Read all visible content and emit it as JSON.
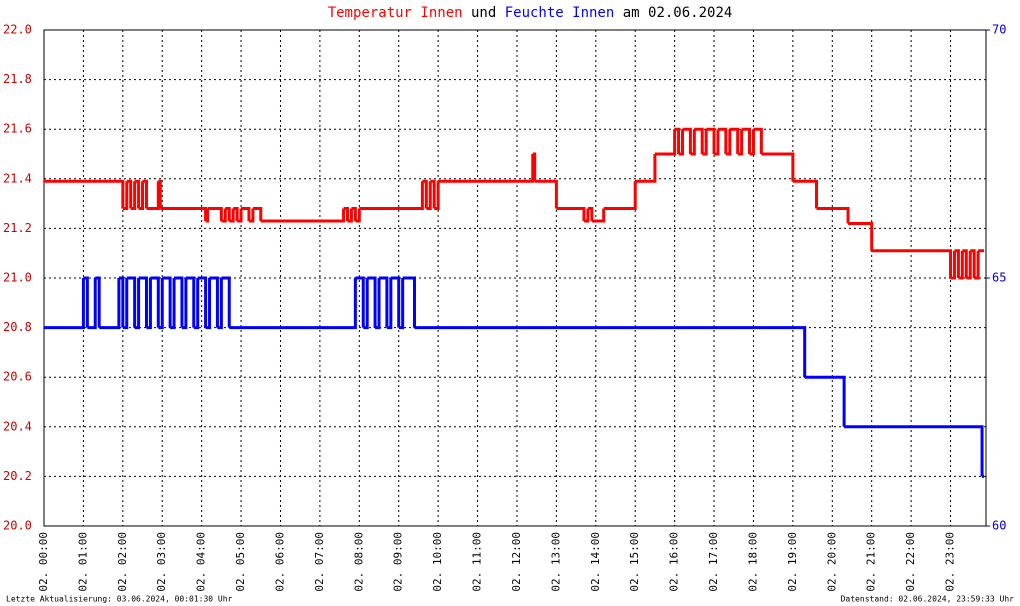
{
  "chart_data": {
    "type": "line",
    "title_parts": [
      "Temperatur Innen",
      "und",
      "Feuchte Innen",
      "am 02.06.2024"
    ],
    "footer_left": "Letzte Aktualisierung: 03.06.2024, 00:01:30 Uhr",
    "footer_right": "Datenstand: 02.06.2024, 23:59:33 Uhr",
    "drawstyle": "steps-post",
    "grid": true,
    "xlim": [
      0,
      23.9
    ],
    "xticks": [
      {
        "value": 0,
        "label": "02. 00:00"
      },
      {
        "value": 1,
        "label": "02. 01:00"
      },
      {
        "value": 2,
        "label": "02. 02:00"
      },
      {
        "value": 3,
        "label": "02. 03:00"
      },
      {
        "value": 4,
        "label": "02. 04:00"
      },
      {
        "value": 5,
        "label": "02. 05:00"
      },
      {
        "value": 6,
        "label": "02. 06:00"
      },
      {
        "value": 7,
        "label": "02. 07:00"
      },
      {
        "value": 8,
        "label": "02. 08:00"
      },
      {
        "value": 9,
        "label": "02. 09:00"
      },
      {
        "value": 10,
        "label": "02. 10:00"
      },
      {
        "value": 11,
        "label": "02. 11:00"
      },
      {
        "value": 12,
        "label": "02. 12:00"
      },
      {
        "value": 13,
        "label": "02. 13:00"
      },
      {
        "value": 14,
        "label": "02. 14:00"
      },
      {
        "value": 15,
        "label": "02. 15:00"
      },
      {
        "value": 16,
        "label": "02. 16:00"
      },
      {
        "value": 17,
        "label": "02. 17:00"
      },
      {
        "value": 18,
        "label": "02. 18:00"
      },
      {
        "value": 19,
        "label": "02. 19:00"
      },
      {
        "value": 20,
        "label": "02. 20:00"
      },
      {
        "value": 21,
        "label": "02. 21:00"
      },
      {
        "value": 22,
        "label": "02. 22:00"
      },
      {
        "value": 23,
        "label": "02. 23:00"
      }
    ],
    "ylim": [
      20,
      22
    ],
    "yticks": [
      {
        "value": 20,
        "label": "20.0"
      },
      20.2,
      20.4,
      20.6,
      20.8,
      {
        "value": 21,
        "label": "21.0"
      },
      21.2,
      21.4,
      21.6,
      21.8,
      {
        "value": 22,
        "label": "22.0"
      }
    ],
    "y2lim": [
      60,
      70
    ],
    "y2ticks": [
      60,
      65,
      70
    ],
    "y2color": "#0000cc",
    "series": [
      {
        "name": "Temperatur Innen",
        "color": "#ff0000",
        "x": [
          0,
          2.0,
          2.1,
          2.2,
          2.3,
          2.4,
          2.5,
          2.6,
          2.9,
          2.95,
          4.1,
          4.15,
          4.5,
          4.6,
          4.7,
          4.8,
          4.9,
          5.0,
          5.2,
          5.3,
          5.5,
          7.6,
          7.7,
          7.8,
          7.9,
          8.0,
          9.6,
          9.7,
          9.8,
          9.9,
          10.0,
          12.4,
          12.45,
          13.0,
          13.7,
          13.8,
          13.9,
          14.2,
          15.0,
          15.5,
          16.0,
          16.1,
          16.2,
          16.4,
          16.5,
          16.7,
          16.8,
          17.0,
          17.1,
          17.3,
          17.4,
          17.6,
          17.7,
          17.9,
          18.0,
          18.2,
          19.0,
          19.6,
          20.4,
          21.0,
          23.0,
          23.1,
          23.2,
          23.3,
          23.4,
          23.5,
          23.6,
          23.7,
          23.85
        ],
        "values": [
          21.39,
          21.28,
          21.39,
          21.28,
          21.39,
          21.28,
          21.39,
          21.28,
          21.39,
          21.28,
          21.23,
          21.28,
          21.23,
          21.28,
          21.23,
          21.28,
          21.23,
          21.28,
          21.23,
          21.28,
          21.23,
          21.28,
          21.23,
          21.28,
          21.23,
          21.28,
          21.39,
          21.28,
          21.39,
          21.28,
          21.39,
          21.5,
          21.39,
          21.28,
          21.23,
          21.28,
          21.23,
          21.28,
          21.39,
          21.5,
          21.6,
          21.5,
          21.6,
          21.5,
          21.6,
          21.5,
          21.6,
          21.5,
          21.6,
          21.5,
          21.6,
          21.5,
          21.6,
          21.5,
          21.6,
          21.5,
          21.39,
          21.28,
          21.22,
          21.11,
          21.0,
          21.11,
          21.0,
          21.11,
          21.0,
          21.11,
          21.0,
          21.11,
          21.11
        ]
      },
      {
        "name": "Feuchte Innen",
        "color": "#0000ff",
        "axis": "y2",
        "x": [
          0,
          1.0,
          1.1,
          1.3,
          1.4,
          1.9,
          2.0,
          2.1,
          2.3,
          2.4,
          2.6,
          2.7,
          2.9,
          3.0,
          3.2,
          3.3,
          3.5,
          3.6,
          3.8,
          3.9,
          4.1,
          4.2,
          4.4,
          4.5,
          4.7,
          7.9,
          8.1,
          8.2,
          8.4,
          8.5,
          8.7,
          8.8,
          9.0,
          9.1,
          9.4,
          19.3,
          20.3,
          23.8,
          23.85
        ],
        "values": [
          64,
          65,
          64,
          65,
          64,
          65,
          64,
          65,
          64,
          65,
          64,
          65,
          64,
          65,
          64,
          65,
          64,
          65,
          64,
          65,
          64,
          65,
          64,
          65,
          64,
          65,
          64,
          65,
          64,
          65,
          64,
          65,
          64,
          65,
          64,
          63,
          62,
          61,
          61
        ]
      }
    ]
  }
}
